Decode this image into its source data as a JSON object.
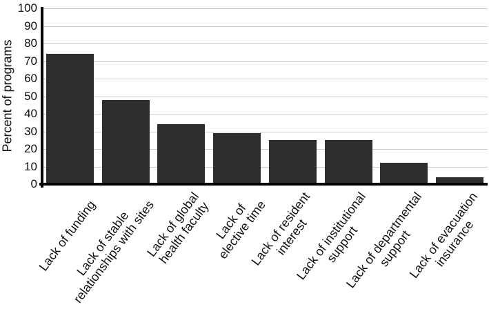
{
  "chart_data": {
    "type": "bar",
    "title": "",
    "xlabel": "",
    "ylabel": "Percent of programs",
    "ylim": [
      0,
      100
    ],
    "ytick_step": 10,
    "yticks": [
      0,
      10,
      20,
      30,
      40,
      50,
      60,
      70,
      80,
      90,
      100
    ],
    "grid": true,
    "legend": "none",
    "categories": [
      "Lack of funding",
      "Lack of stable relationships with sites",
      "Lack of global health faculty",
      "Lack of elective time",
      "Lack of resident interest",
      "Lack of institutional support",
      "Lack of departmental support",
      "Lack of evacuation insurance"
    ],
    "category_lines": [
      [
        "Lack of funding"
      ],
      [
        "Lack of stable",
        "relationships with sites"
      ],
      [
        "Lack of global",
        "health faculty"
      ],
      [
        "Lack of",
        "elective time"
      ],
      [
        "Lack of resident",
        "interest"
      ],
      [
        "Lack of institutional",
        "support"
      ],
      [
        "Lack of departmental",
        "support"
      ],
      [
        "Lack of evacuation",
        "insurance"
      ]
    ],
    "values": [
      74,
      48,
      34,
      29,
      25,
      25,
      12,
      4
    ]
  },
  "colors": {
    "bar": "#2d2d2d",
    "axis": "#000000",
    "gridline": "#cccccc",
    "text": "#111111",
    "background": "#ffffff"
  }
}
